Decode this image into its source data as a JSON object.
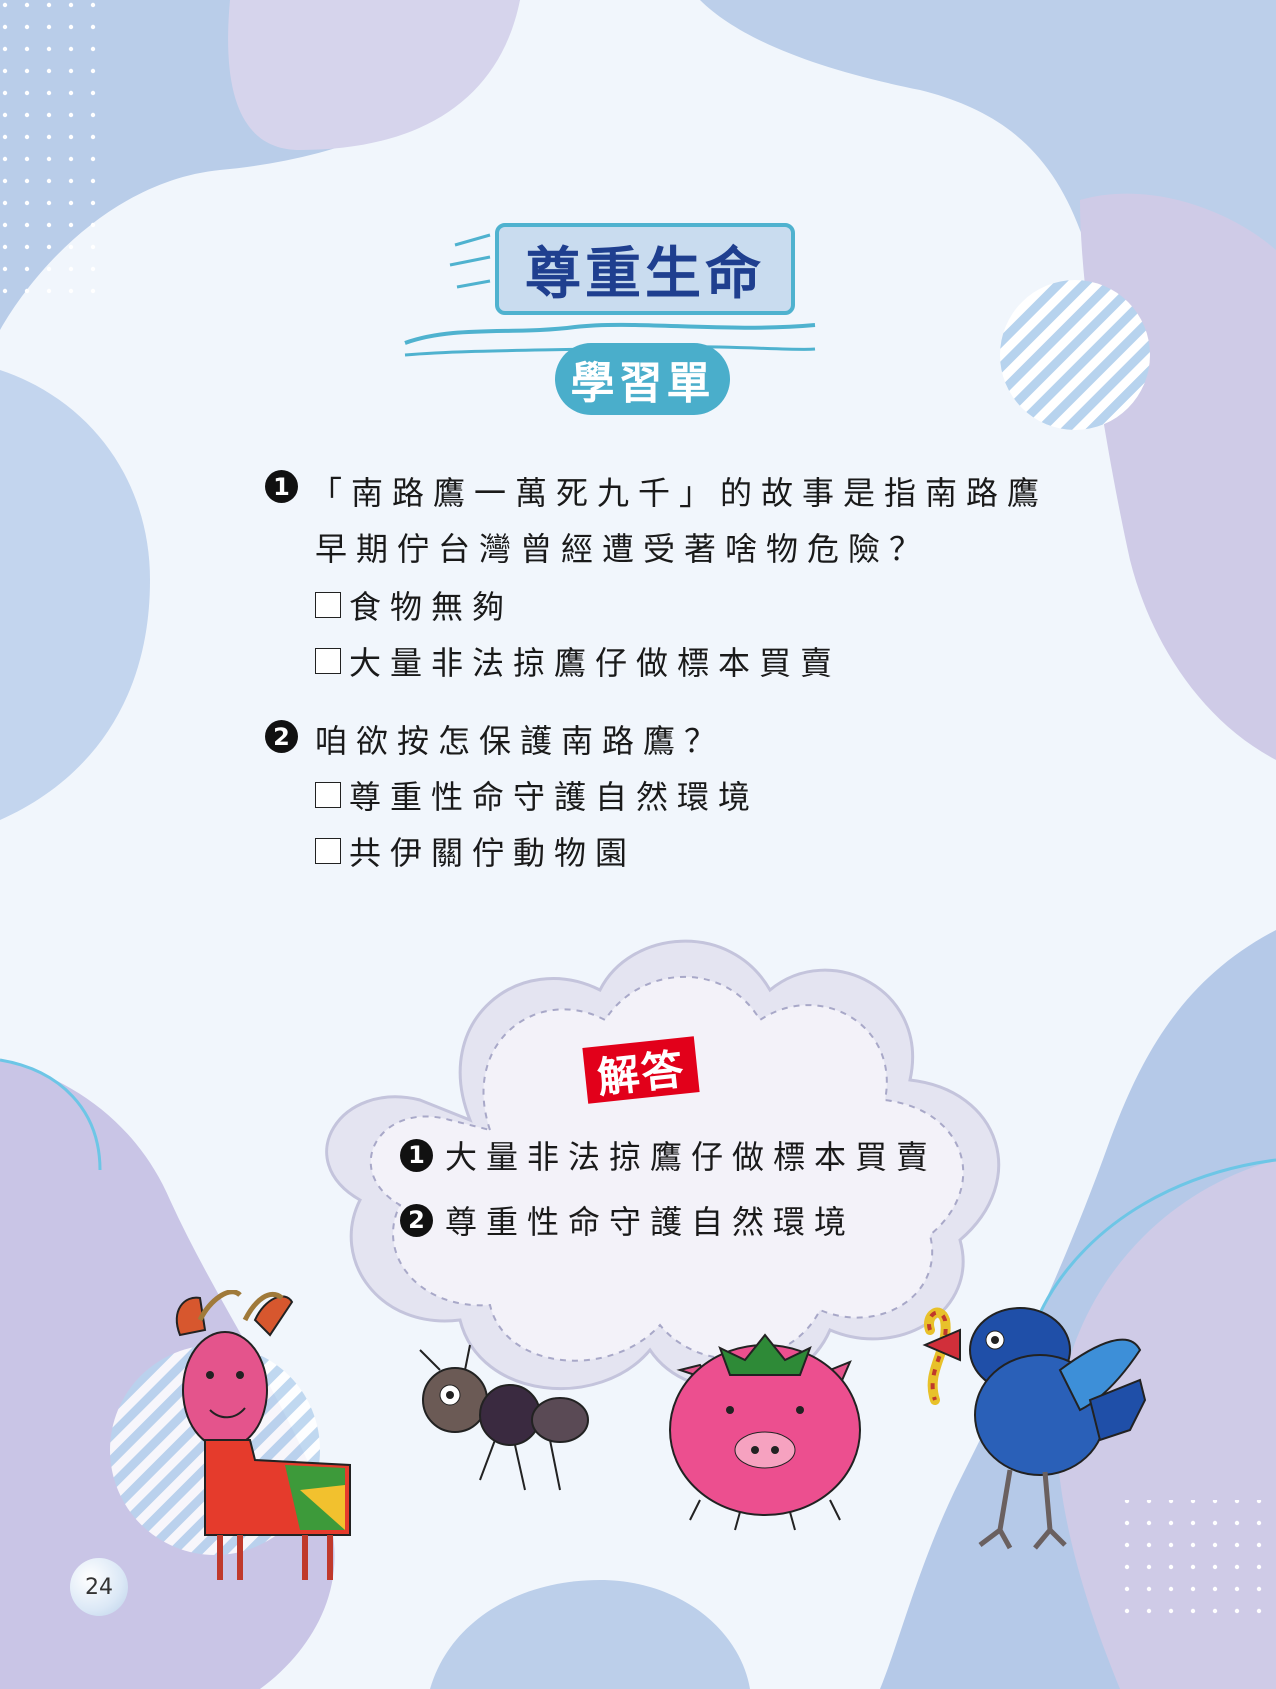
{
  "title": {
    "main": "尊重生命",
    "sub": "學習單"
  },
  "questions": [
    {
      "number": "1",
      "lines": [
        "「南路鷹一萬死九千」的故事是指南路鷹",
        "早期佇台灣曾經遭受著啥物危險？"
      ],
      "options": [
        "食物無夠",
        "大量非法掠鷹仔做標本買賣"
      ]
    },
    {
      "number": "2",
      "lines": [
        "咱欲按怎保護南路鷹？"
      ],
      "options": [
        "尊重性命守護自然環境",
        "共伊關佇動物園"
      ]
    }
  ],
  "answer": {
    "label": "解答",
    "items": [
      {
        "number": "1",
        "text": "大量非法掠鷹仔做標本買賣"
      },
      {
        "number": "2",
        "text": "尊重性命守護自然環境"
      }
    ]
  },
  "page_number": "24",
  "illustrations": [
    "goat-drawing",
    "ant-drawing",
    "tomato-pig-drawing",
    "bird-with-worm-drawing"
  ]
}
